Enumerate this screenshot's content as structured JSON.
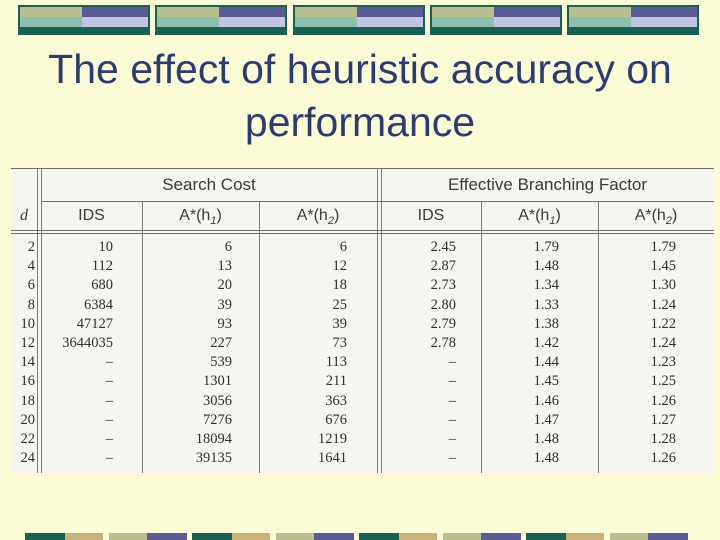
{
  "slide": {
    "title_line1": "The effect of heuristic accuracy on",
    "title_line2": "performance"
  },
  "colors": {
    "background": "#fbfbd6",
    "title_text": "#2d3c70",
    "band_dark_green": "#1a6155",
    "band_olive": "#b9bf8f",
    "band_mint": "#8dbfae",
    "band_navy": "#5a5a95",
    "band_lavender": "#c2c6e2"
  },
  "table": {
    "group_headers": {
      "search_cost": "Search Cost",
      "ebf": "Effective Branching Factor"
    },
    "column_headers": {
      "d": "d",
      "ids": "IDS",
      "a_star_h1": "A*(h",
      "h1_sub": "1",
      "a_star_h2": "A*(h",
      "h2_sub": "2",
      "close_paren": ")",
      "ids_ebf": "IDS",
      "a_star_h1_ebf": "A*(h",
      "a_star_h2_ebf": "A*(h"
    },
    "rows": [
      {
        "d": "2",
        "ids_cost": "10",
        "a1_cost": "6",
        "a2_cost": "6",
        "ids_ebf": "2.45",
        "a1_ebf": "1.79",
        "a2_ebf": "1.79"
      },
      {
        "d": "4",
        "ids_cost": "112",
        "a1_cost": "13",
        "a2_cost": "12",
        "ids_ebf": "2.87",
        "a1_ebf": "1.48",
        "a2_ebf": "1.45"
      },
      {
        "d": "6",
        "ids_cost": "680",
        "a1_cost": "20",
        "a2_cost": "18",
        "ids_ebf": "2.73",
        "a1_ebf": "1.34",
        "a2_ebf": "1.30"
      },
      {
        "d": "8",
        "ids_cost": "6384",
        "a1_cost": "39",
        "a2_cost": "25",
        "ids_ebf": "2.80",
        "a1_ebf": "1.33",
        "a2_ebf": "1.24"
      },
      {
        "d": "10",
        "ids_cost": "47127",
        "a1_cost": "93",
        "a2_cost": "39",
        "ids_ebf": "2.79",
        "a1_ebf": "1.38",
        "a2_ebf": "1.22"
      },
      {
        "d": "12",
        "ids_cost": "3644035",
        "a1_cost": "227",
        "a2_cost": "73",
        "ids_ebf": "2.78",
        "a1_ebf": "1.42",
        "a2_ebf": "1.24"
      },
      {
        "d": "14",
        "ids_cost": "–",
        "a1_cost": "539",
        "a2_cost": "113",
        "ids_ebf": "–",
        "a1_ebf": "1.44",
        "a2_ebf": "1.23"
      },
      {
        "d": "16",
        "ids_cost": "–",
        "a1_cost": "1301",
        "a2_cost": "211",
        "ids_ebf": "–",
        "a1_ebf": "1.45",
        "a2_ebf": "1.25"
      },
      {
        "d": "18",
        "ids_cost": "–",
        "a1_cost": "3056",
        "a2_cost": "363",
        "ids_ebf": "–",
        "a1_ebf": "1.46",
        "a2_ebf": "1.26"
      },
      {
        "d": "20",
        "ids_cost": "–",
        "a1_cost": "7276",
        "a2_cost": "676",
        "ids_ebf": "–",
        "a1_ebf": "1.47",
        "a2_ebf": "1.27"
      },
      {
        "d": "22",
        "ids_cost": "–",
        "a1_cost": "18094",
        "a2_cost": "1219",
        "ids_ebf": "–",
        "a1_ebf": "1.48",
        "a2_ebf": "1.28"
      },
      {
        "d": "24",
        "ids_cost": "–",
        "a1_cost": "39135",
        "a2_cost": "1641",
        "ids_ebf": "–",
        "a1_ebf": "1.48",
        "a2_ebf": "1.26"
      }
    ]
  }
}
